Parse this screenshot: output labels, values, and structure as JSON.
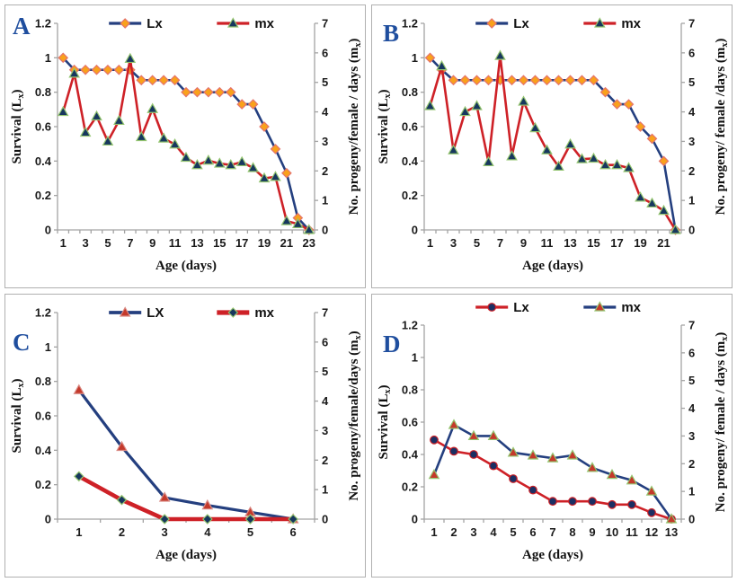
{
  "figure": {
    "background": "#ffffff",
    "panel_border": "#b0b0b0",
    "axis_color": "#a3a3a3",
    "panel_letter_color": "#1f4e9e"
  },
  "chart_data": [
    {
      "panel": "A",
      "type": "line",
      "x": [
        1,
        2,
        3,
        4,
        5,
        6,
        7,
        8,
        9,
        10,
        11,
        12,
        13,
        14,
        15,
        16,
        17,
        18,
        19,
        20,
        21,
        22,
        23
      ],
      "x_label_step": 2,
      "xlabel": "Age (days)",
      "ylabel_left": "Survival (L~x~)",
      "ylabel_right": "No. progeny/female / days (m~x~)",
      "ylim_left": [
        0,
        1.2
      ],
      "yticks_left": [
        "0",
        "0.2",
        "0.4",
        "0.6",
        "0.8",
        "1",
        "1.2"
      ],
      "ylim_right": [
        0,
        7
      ],
      "yticks_right": [
        "0",
        "1",
        "2",
        "3",
        "4",
        "5",
        "6",
        "7"
      ],
      "grid": "off",
      "legend_position": "top-center",
      "series": [
        {
          "name": "Lx",
          "axis": "left",
          "line_color": "#243f7f",
          "line_width": 2.6,
          "marker": {
            "shape": "diamond",
            "fill": "#f9a11b",
            "stroke": "#e4736b"
          },
          "values": [
            1.0,
            0.93,
            0.93,
            0.93,
            0.93,
            0.93,
            0.93,
            0.87,
            0.87,
            0.87,
            0.87,
            0.8,
            0.8,
            0.8,
            0.8,
            0.8,
            0.73,
            0.73,
            0.6,
            0.47,
            0.33,
            0.07,
            0.0
          ]
        },
        {
          "name": "mx",
          "axis": "right",
          "line_color": "#ce2127",
          "line_width": 2.6,
          "marker": {
            "shape": "triangle",
            "fill": "#17375e",
            "stroke": "#93c46f"
          },
          "values": [
            4.0,
            5.3,
            3.3,
            3.85,
            3.0,
            3.7,
            5.8,
            3.15,
            4.1,
            3.1,
            2.9,
            2.45,
            2.2,
            2.35,
            2.25,
            2.2,
            2.3,
            2.1,
            1.75,
            1.8,
            0.3,
            0.2,
            0.0
          ]
        }
      ]
    },
    {
      "panel": "B",
      "type": "line",
      "x": [
        1,
        2,
        3,
        4,
        5,
        6,
        7,
        8,
        9,
        10,
        11,
        12,
        13,
        14,
        15,
        16,
        17,
        18,
        19,
        20,
        21,
        22
      ],
      "x_label_step": 2,
      "xlabel": "Age (days)",
      "ylabel_left": "Survival (L~x~)",
      "ylabel_right": "No. progeny/ female /days (m~x~)",
      "ylim_left": [
        0,
        1.2
      ],
      "yticks_left": [
        "0",
        "0.2",
        "0.4",
        "0.6",
        "0.8",
        "1",
        "1.2"
      ],
      "ylim_right": [
        0,
        7
      ],
      "yticks_right": [
        "0",
        "1",
        "2",
        "3",
        "4",
        "5",
        "6",
        "7"
      ],
      "grid": "off",
      "legend_position": "top-center",
      "series": [
        {
          "name": "Lx",
          "axis": "left",
          "line_color": "#243f7f",
          "line_width": 2.6,
          "marker": {
            "shape": "diamond",
            "fill": "#f9a11b",
            "stroke": "#e4736b"
          },
          "values": [
            1.0,
            0.93,
            0.87,
            0.87,
            0.87,
            0.87,
            0.87,
            0.87,
            0.87,
            0.87,
            0.87,
            0.87,
            0.87,
            0.87,
            0.87,
            0.8,
            0.73,
            0.73,
            0.6,
            0.53,
            0.4,
            0.0
          ]
        },
        {
          "name": "mx",
          "axis": "right",
          "line_color": "#ce2127",
          "line_width": 2.6,
          "marker": {
            "shape": "triangle",
            "fill": "#17375e",
            "stroke": "#93c46f"
          },
          "values": [
            4.2,
            5.55,
            2.7,
            4.0,
            4.2,
            2.3,
            5.9,
            2.5,
            4.35,
            3.45,
            2.7,
            2.15,
            2.9,
            2.4,
            2.42,
            2.2,
            2.2,
            2.1,
            1.1,
            0.9,
            0.65,
            0.0
          ]
        }
      ]
    },
    {
      "panel": "C",
      "type": "line",
      "x": [
        1,
        2,
        3,
        4,
        5,
        6
      ],
      "x_label_step": 1,
      "xlabel": "Age (days)",
      "ylabel_left": "Survival (L~x~)",
      "ylabel_right": "No. progeny/female/days (m~x~)",
      "ylim_left": [
        0,
        1.2
      ],
      "yticks_left": [
        "0",
        "0.2",
        "0.4",
        "0.6",
        "0.8",
        "1",
        "1.2"
      ],
      "ylim_right": [
        0,
        7
      ],
      "yticks_right": [
        "0",
        "1",
        "2",
        "3",
        "4",
        "5",
        "6",
        "7"
      ],
      "grid": "off",
      "legend_position": "top-center",
      "series": [
        {
          "name": "LX",
          "axis": "left",
          "line_color": "#243f7f",
          "line_width": 3.2,
          "marker": {
            "shape": "triangle",
            "fill": "#c4392b",
            "stroke": "#d98a84"
          },
          "values": [
            0.75,
            0.42,
            0.125,
            0.08,
            0.04,
            0.0
          ]
        },
        {
          "name": "mx",
          "axis": "right",
          "line_color": "#ce2127",
          "line_width": 4.6,
          "marker": {
            "shape": "diamond",
            "fill": "#17375e",
            "stroke": "#93c46f"
          },
          "values": [
            1.45,
            0.65,
            0.0,
            0.0,
            0.0,
            0.0
          ]
        }
      ]
    },
    {
      "panel": "D",
      "type": "line",
      "x": [
        1,
        2,
        3,
        4,
        5,
        6,
        7,
        8,
        9,
        10,
        11,
        12,
        13
      ],
      "x_label_step": 1,
      "xlabel": "Age (days)",
      "ylabel_left": "Survival (L~x~)",
      "ylabel_right": "No. progeny/ female / days (m~x~)",
      "ylim_left": [
        0,
        1.2
      ],
      "yticks_left": [
        "0",
        "0.2",
        "0.4",
        "0.6",
        "0.8",
        "1",
        "1.2"
      ],
      "ylim_right": [
        0,
        7
      ],
      "yticks_right": [
        "0",
        "1",
        "2",
        "3",
        "4",
        "5",
        "6",
        "7"
      ],
      "grid": "off",
      "legend_position": "top-center",
      "series": [
        {
          "name": "Lx",
          "axis": "left",
          "line_color": "#ce2127",
          "line_width": 2.6,
          "marker": {
            "shape": "circle",
            "fill": "#1b2f63",
            "stroke": "#ce2127"
          },
          "values": [
            0.49,
            0.42,
            0.4,
            0.33,
            0.25,
            0.18,
            0.11,
            0.11,
            0.11,
            0.09,
            0.09,
            0.04,
            0.0
          ]
        },
        {
          "name": "mx",
          "axis": "right",
          "line_color": "#243f7f",
          "line_width": 2.6,
          "marker": {
            "shape": "triangle",
            "fill": "#c4392b",
            "stroke": "#93c46f"
          },
          "values": [
            1.6,
            3.4,
            3.0,
            3.0,
            2.4,
            2.3,
            2.2,
            2.3,
            1.85,
            1.6,
            1.4,
            1.0,
            0.0
          ]
        }
      ]
    }
  ]
}
